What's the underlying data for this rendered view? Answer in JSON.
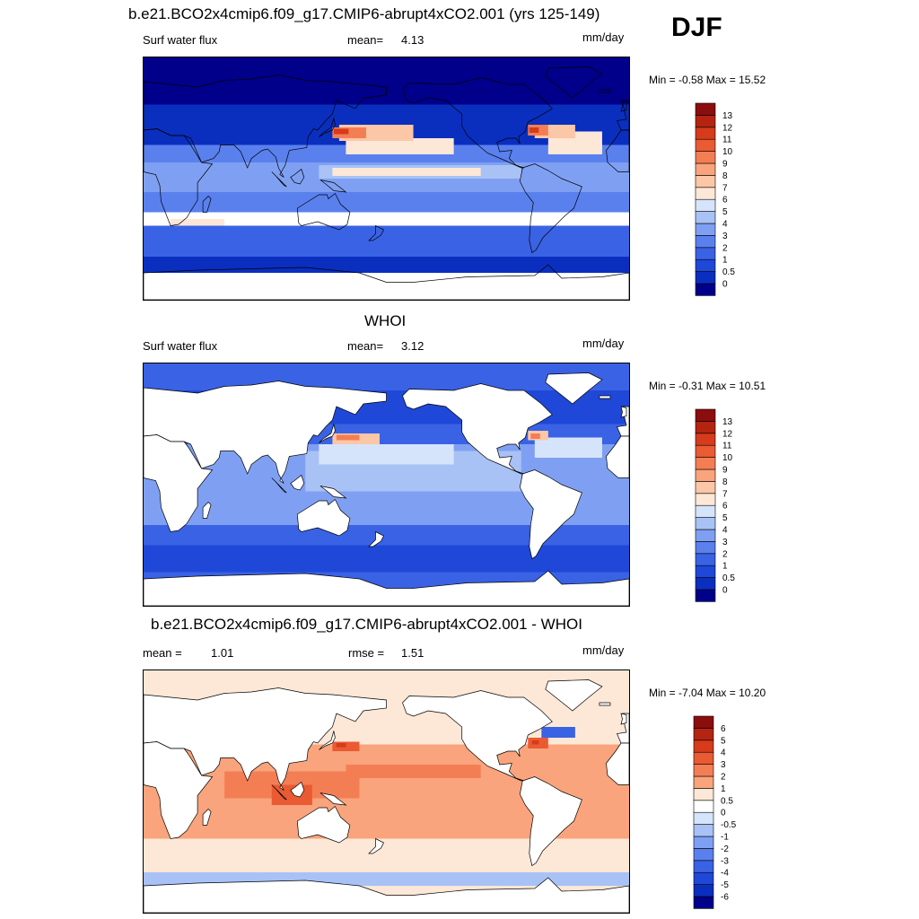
{
  "season": "DJF",
  "chart_data": [
    {
      "type": "heatmap",
      "title": "b.e21.BCO2x4cmip6.f09_g17.CMIP6-abrupt4xCO2.001 (yrs 125-149)",
      "variable": "Surf water flux",
      "stat_label": "mean=",
      "stat_value": "4.13",
      "units": "mm/day",
      "min_label": "Min =",
      "min": "-0.58",
      "max_label": "Max =",
      "max": "15.52",
      "levels": [
        "0",
        "0.5",
        "1",
        "2",
        "3",
        "4",
        "5",
        "6",
        "7",
        "8",
        "9",
        "10",
        "11",
        "12",
        "13"
      ],
      "colors": [
        "#00008b",
        "#0a2fbf",
        "#1f48d8",
        "#3a62e4",
        "#5a80ee",
        "#7fa0f2",
        "#a8c2f6",
        "#d6e4fb",
        "#fde7d6",
        "#fcc7a6",
        "#f9a47c",
        "#f47e54",
        "#ea5a33",
        "#d63b1b",
        "#b42410",
        "#8c0d0d"
      ],
      "land_masked": false
    },
    {
      "type": "heatmap",
      "title": "WHOI",
      "variable": "Surf water flux",
      "stat_label": "mean=",
      "stat_value": "3.12",
      "units": "mm/day",
      "min_label": "Min =",
      "min": "-0.31",
      "max_label": "Max =",
      "max": "10.51",
      "levels": [
        "0",
        "0.5",
        "1",
        "2",
        "3",
        "4",
        "5",
        "6",
        "7",
        "8",
        "9",
        "10",
        "11",
        "12",
        "13"
      ],
      "colors": [
        "#00008b",
        "#0a2fbf",
        "#1f48d8",
        "#3a62e4",
        "#5a80ee",
        "#7fa0f2",
        "#a8c2f6",
        "#d6e4fb",
        "#fde7d6",
        "#fcc7a6",
        "#f9a47c",
        "#f47e54",
        "#ea5a33",
        "#d63b1b",
        "#b42410",
        "#8c0d0d"
      ],
      "land_masked": true
    },
    {
      "type": "heatmap",
      "title": "b.e21.BCO2x4cmip6.f09_g17.CMIP6-abrupt4xCO2.001 - WHOI",
      "stat_label": "mean =",
      "stat_value": "1.01",
      "stat2_label": "rmse =",
      "stat2_value": "1.51",
      "units": "mm/day",
      "min_label": "Min =",
      "min": "-7.04",
      "max_label": "Max =",
      "max": "10.20",
      "levels": [
        "-6",
        "-5",
        "-4",
        "-3",
        "-2",
        "-1",
        "-0.5",
        "0",
        "0.5",
        "1",
        "2",
        "3",
        "4",
        "5",
        "6"
      ],
      "colors": [
        "#00008b",
        "#0a2fbf",
        "#1f48d8",
        "#3a62e4",
        "#5a80ee",
        "#7fa0f2",
        "#a8c2f6",
        "#d6e4fb",
        "#ffffff",
        "#fde7d6",
        "#f9a47c",
        "#f47e54",
        "#ea5a33",
        "#d63b1b",
        "#b42410",
        "#8c0d0d"
      ],
      "land_masked": true
    }
  ]
}
